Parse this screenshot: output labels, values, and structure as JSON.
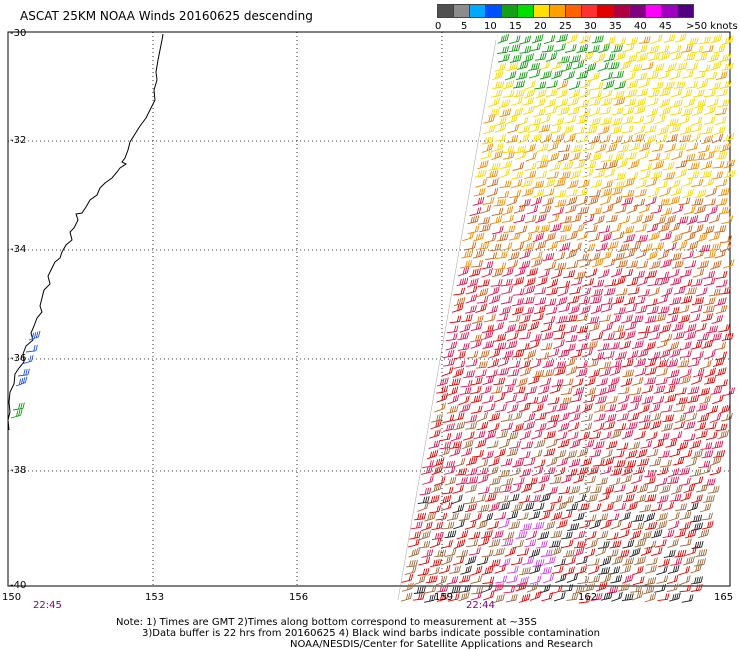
{
  "title": "ASCAT 25KM NOAA Winds 20160625 descending",
  "scale": {
    "colors": [
      "#505050",
      "#8c8c8c",
      "#00a8ff",
      "#0050ff",
      "#14a014",
      "#00e000",
      "#ffe000",
      "#ffa000",
      "#ff6000",
      "#ff3030",
      "#e00000",
      "#b00040",
      "#800080",
      "#ff00ff",
      "#a000c0",
      "#500080"
    ],
    "labels": [
      "0",
      "5",
      "10",
      "15",
      "20",
      "25",
      "30",
      "35",
      "40",
      "45",
      ">50 knots"
    ]
  },
  "lat_labels": [
    "-30",
    "-32",
    "-34",
    "-36",
    "-38",
    "-40"
  ],
  "lon_labels": [
    "150",
    "153",
    "156",
    "159",
    "162",
    "165"
  ],
  "times": [
    "22:45",
    "22:44"
  ],
  "notes": [
    "Note: 1) Times are GMT 2)Times along bottom correspond to measurement at ~35S",
    "3)Data buffer is 22 hrs from 20160625 4) Black wind barbs indicate possible contamination",
    "NOAA/NESDIS/Center for Satellite Applications and Research"
  ],
  "wind_colors": {
    "green": "#129a12",
    "yellow": "#f5d800",
    "orange": "#f08a00",
    "brown_orange": "#c8641e",
    "crimson": "#dc1450",
    "red": "#e00000",
    "brown": "#9a6a3c",
    "magenta": "#d040e0",
    "black": "#202020",
    "blue": "#2050e0"
  }
}
